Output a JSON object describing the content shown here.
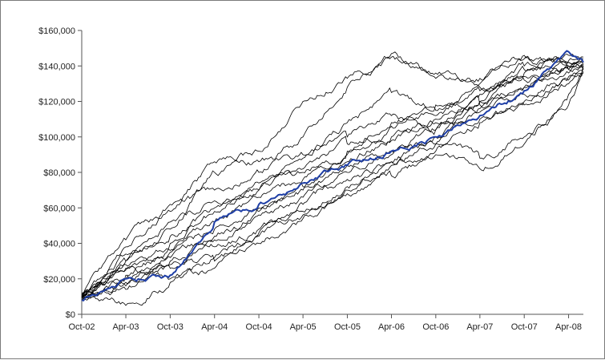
{
  "chart_data": {
    "type": "line",
    "title": "",
    "xlabel": "",
    "ylabel": "",
    "ylim": [
      0,
      160000
    ],
    "xlim": [
      "2002-10-01",
      "2008-06-01"
    ],
    "grid": false,
    "legend": "none",
    "y_ticks": [
      {
        "value": 0,
        "label": "$0"
      },
      {
        "value": 20000,
        "label": "$20,000"
      },
      {
        "value": 40000,
        "label": "$40,000"
      },
      {
        "value": 60000,
        "label": "$60,000"
      },
      {
        "value": 80000,
        "label": "$80,000"
      },
      {
        "value": 100000,
        "label": "$100,000"
      },
      {
        "value": 120000,
        "label": "$120,000"
      },
      {
        "value": 140000,
        "label": "$140,000"
      },
      {
        "value": 160000,
        "label": "$160,000"
      }
    ],
    "x_ticks": [
      {
        "value": "2002-10-01",
        "label": "Oct-02"
      },
      {
        "value": "2003-04-01",
        "label": "Apr-03"
      },
      {
        "value": "2003-10-01",
        "label": "Oct-03"
      },
      {
        "value": "2004-04-01",
        "label": "Apr-04"
      },
      {
        "value": "2004-10-01",
        "label": "Oct-04"
      },
      {
        "value": "2005-04-01",
        "label": "Apr-05"
      },
      {
        "value": "2005-10-01",
        "label": "Oct-05"
      },
      {
        "value": "2006-04-01",
        "label": "Apr-06"
      },
      {
        "value": "2006-10-01",
        "label": "Oct-06"
      },
      {
        "value": "2007-04-01",
        "label": "Apr-07"
      },
      {
        "value": "2007-10-01",
        "label": "Oct-07"
      },
      {
        "value": "2008-04-01",
        "label": "Apr-08"
      }
    ],
    "x": [
      "2002-10-01",
      "2003-04-01",
      "2003-10-01",
      "2004-04-01",
      "2004-10-01",
      "2005-04-01",
      "2005-10-01",
      "2006-04-01",
      "2006-10-01",
      "2007-04-01",
      "2007-10-01",
      "2008-04-01",
      "2008-06-01"
    ],
    "highlight_series": {
      "color": "#1f3fa6",
      "values": [
        8000,
        20000,
        22000,
        52000,
        62000,
        74000,
        84000,
        92000,
        100000,
        112000,
        126000,
        148000,
        142000
      ]
    },
    "series_color": "#000000",
    "series": [
      {
        "values": [
          10000,
          42000,
          58000,
          86000,
          92000,
          120000,
          133000,
          145000,
          136000,
          133000,
          146000,
          140000,
          140000
        ]
      },
      {
        "values": [
          9000,
          38000,
          62000,
          70000,
          80000,
          100000,
          128000,
          147000,
          133000,
          130000,
          144000,
          142000,
          138000
        ]
      },
      {
        "values": [
          11000,
          30000,
          48000,
          80000,
          86000,
          90000,
          108000,
          125000,
          115000,
          120000,
          140000,
          143000,
          145000
        ]
      },
      {
        "values": [
          8000,
          25000,
          40000,
          60000,
          70000,
          88000,
          100000,
          112000,
          104000,
          118000,
          128000,
          138000,
          141000
        ]
      },
      {
        "values": [
          10000,
          28000,
          35000,
          52000,
          66000,
          76000,
          90000,
          106000,
          112000,
          126000,
          136000,
          146000,
          144000
        ]
      },
      {
        "values": [
          9000,
          14000,
          26000,
          38000,
          48000,
          58000,
          72000,
          86000,
          92000,
          108000,
          120000,
          132000,
          138000
        ]
      },
      {
        "values": [
          12000,
          5000,
          18000,
          32000,
          44000,
          56000,
          68000,
          78000,
          90000,
          82000,
          96000,
          124000,
          140000
        ]
      },
      {
        "values": [
          8000,
          18000,
          30000,
          44000,
          56000,
          66000,
          76000,
          86000,
          100000,
          110000,
          118000,
          130000,
          139000
        ]
      },
      {
        "values": [
          10000,
          22000,
          36000,
          48000,
          58000,
          72000,
          84000,
          92000,
          96000,
          88000,
          100000,
          118000,
          136000
        ]
      },
      {
        "values": [
          9000,
          30000,
          52000,
          64000,
          70000,
          82000,
          96000,
          108000,
          118000,
          128000,
          134000,
          140000,
          142000
        ]
      },
      {
        "values": [
          11000,
          20000,
          28000,
          30000,
          40000,
          54000,
          70000,
          84000,
          96000,
          116000,
          128000,
          136000,
          143000
        ]
      },
      {
        "values": [
          10000,
          34000,
          44000,
          58000,
          74000,
          80000,
          92000,
          98000,
          110000,
          124000,
          132000,
          138000,
          140000
        ]
      },
      {
        "values": [
          9000,
          26000,
          20000,
          26000,
          46000,
          62000,
          80000,
          90000,
          104000,
          120000,
          138000,
          142000,
          141000
        ]
      },
      {
        "values": [
          10000,
          16000,
          32000,
          42000,
          60000,
          70000,
          86000,
          100000,
          108000,
          114000,
          124000,
          134000,
          137000
        ]
      }
    ]
  }
}
